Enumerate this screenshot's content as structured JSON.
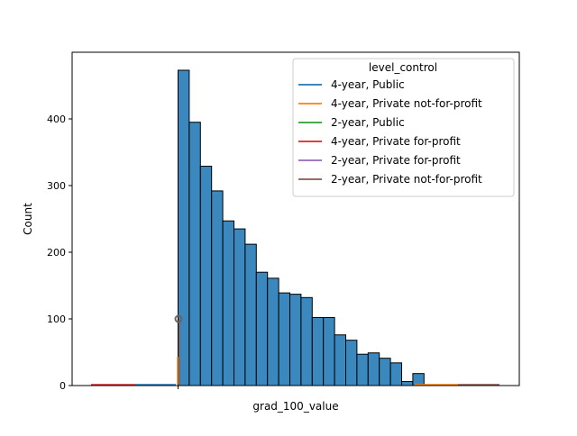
{
  "chart_data": {
    "type": "bar",
    "xlabel": "grad_100_value",
    "ylabel": "Count",
    "x_tick_labels": [
      ""
    ],
    "ylim": [
      0,
      500
    ],
    "y_ticks": [
      0,
      100,
      200,
      300,
      400
    ],
    "grid": false,
    "legend": {
      "title": "level_control",
      "placement": "top-right",
      "entries": [
        {
          "label": "4-year, Public",
          "color": "#1f77b4"
        },
        {
          "label": "4-year, Private not-for-profit",
          "color": "#ff7f0e"
        },
        {
          "label": "2-year, Public",
          "color": "#2ca02c"
        },
        {
          "label": "4-year, Private for-profit",
          "color": "#d62728"
        },
        {
          "label": "2-year, Private for-profit",
          "color": "#9467bd"
        },
        {
          "label": "2-year, Private not-for-profit",
          "color": "#8c564b"
        }
      ]
    },
    "histogram": {
      "bar_color": "#3b88be",
      "edge_color": "#000000",
      "counts": [
        473,
        395,
        329,
        292,
        247,
        235,
        212,
        170,
        161,
        139,
        137,
        132,
        102,
        102,
        76,
        68,
        47,
        49,
        41,
        34,
        6,
        18
      ]
    }
  },
  "colors": {
    "background": "#ffffff",
    "axes_edge": "#000000"
  }
}
